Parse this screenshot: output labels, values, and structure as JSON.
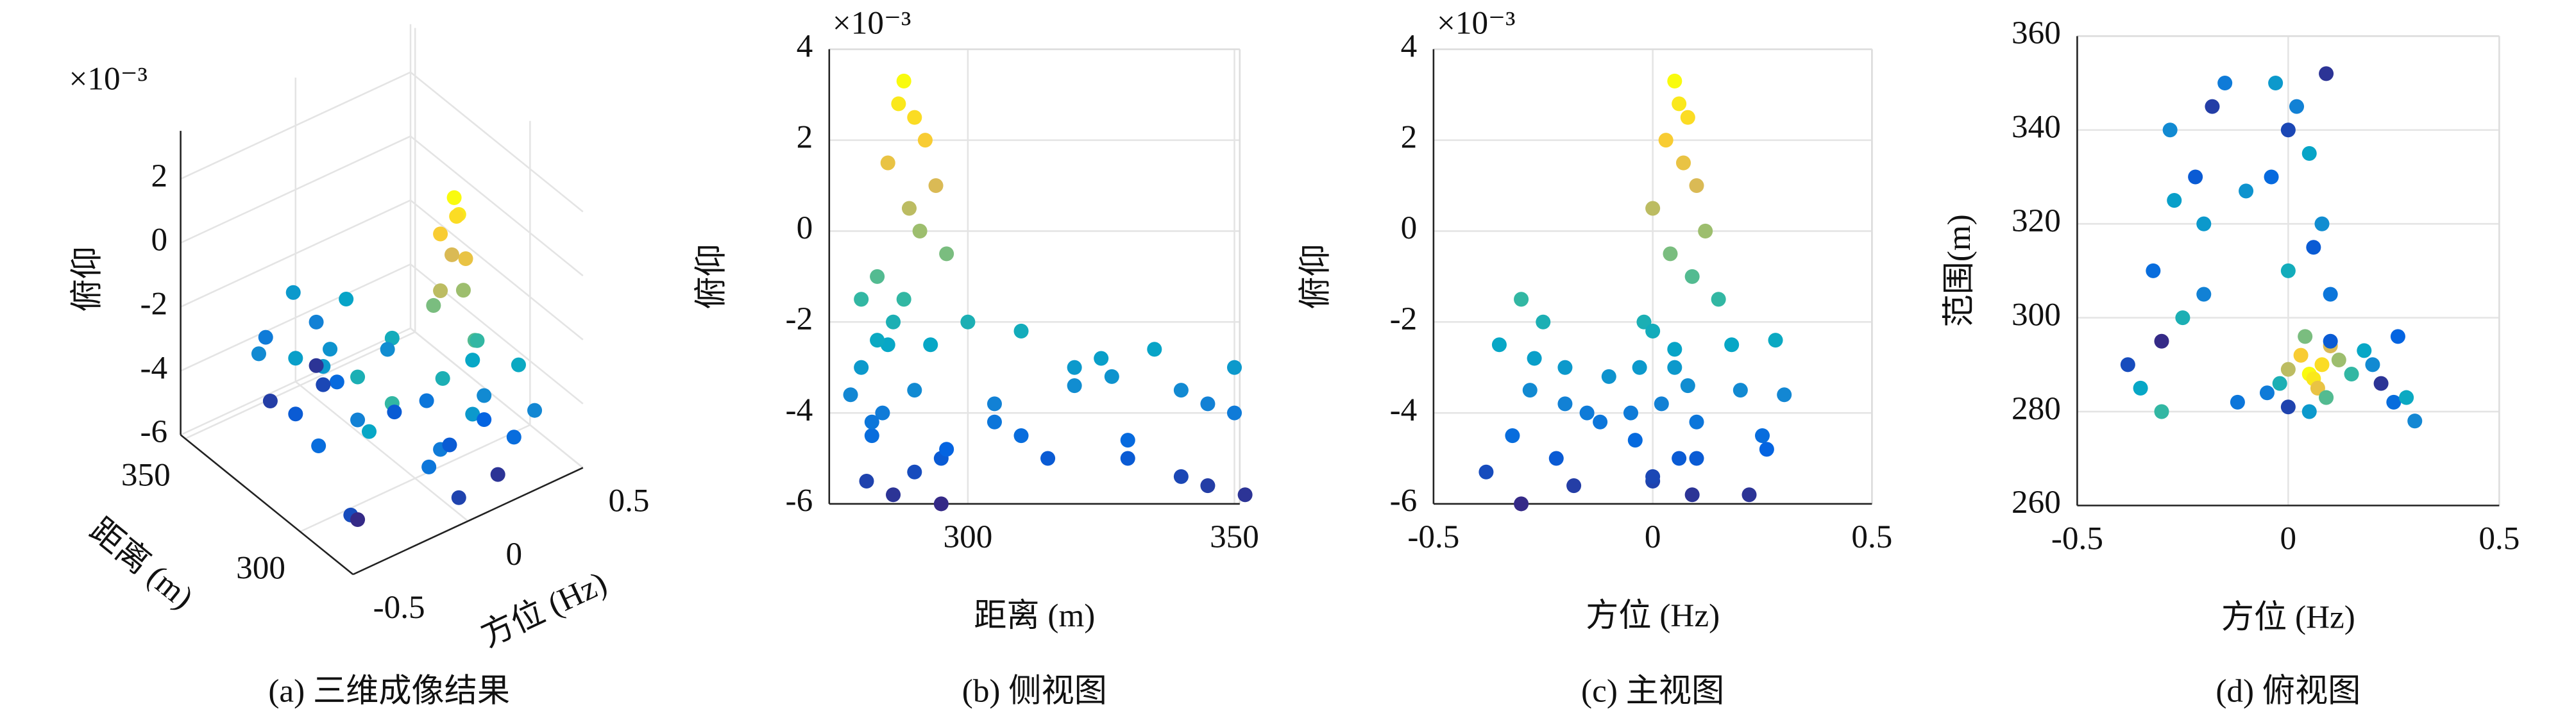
{
  "chart_data": [
    {
      "type": "scatter3d",
      "caption": "(a) 三维成像结果",
      "multiplier": "×10⁻³",
      "xlabel": "方位 (Hz)",
      "ylabel": "距离 (m)",
      "zlabel": "俯仰",
      "xlim": [
        -0.5,
        0.5
      ],
      "ylim": [
        277,
        352
      ],
      "zlim": [
        -6,
        3.5
      ],
      "xticks": [
        -0.5,
        0,
        0.5
      ],
      "yticks": [
        300,
        350
      ],
      "zticks": [
        -6,
        -4,
        -2,
        0,
        2
      ],
      "grid": true,
      "colormap": [
        "#352a87",
        "#0363e1",
        "#1485d4",
        "#06a7c6",
        "#38b99e",
        "#92bf73",
        "#d9ba56",
        "#fcce2e",
        "#f9fb0e"
      ],
      "x": [
        0.05,
        0.06,
        0.08,
        0.03,
        0.07,
        0.1,
        0,
        0.12,
        0.04,
        0.09,
        0.15,
        -0.02,
        0.18,
        0.05,
        0.2,
        -0.05,
        0.25,
        0.1,
        0,
        0.22,
        -0.3,
        -0.25,
        -0.35,
        -0.2,
        -0.28,
        -0.15,
        -0.32,
        -0.22,
        -0.38,
        -0.18,
        -0.3,
        -0.12,
        -0.27,
        -0.2,
        0,
        0.05,
        -0.03,
        0.08,
        0.02,
        0.1,
        -0.04,
        0.06,
        0,
        0.09,
        0.28,
        0.3,
        0.26,
        -0.1
      ],
      "y": [
        288,
        287,
        290,
        292,
        285,
        294,
        289,
        291,
        296,
        283,
        288,
        286,
        293,
        280,
        290,
        284,
        282,
        295,
        281,
        286,
        280,
        300,
        285,
        320,
        340,
        350,
        310,
        330,
        290,
        345,
        295,
        282,
        325,
        305,
        310,
        335,
        350,
        320,
        345,
        305,
        330,
        315,
        340,
        352,
        283,
        278,
        296,
        327
      ],
      "z": [
        3.3,
        2.8,
        2.5,
        2.0,
        1.5,
        1.0,
        0.5,
        0,
        -0.5,
        -1.0,
        -1.5,
        -2.0,
        -2.5,
        -3.0,
        -3.5,
        -4.0,
        -4.5,
        -5.0,
        -5.5,
        -5.8,
        -1.5,
        -2.0,
        -2.5,
        -3.0,
        -3.5,
        -4.0,
        -4.5,
        -5.0,
        -5.3,
        -5.6,
        -6.0,
        -4.2,
        -2.8,
        -3.8,
        -2.2,
        -2.6,
        -3.0,
        -3.4,
        -3.8,
        -4.2,
        -4.6,
        -5.0,
        -5.4,
        -5.8,
        -2.4,
        -3.6,
        -4.8,
        -3.2
      ]
    },
    {
      "type": "scatter",
      "caption": "(b) 侧视图",
      "multiplier": "×10⁻³",
      "xlabel": "距离 (m)",
      "ylabel": "俯仰",
      "xlim": [
        274,
        351
      ],
      "ylim": [
        -6,
        4
      ],
      "xticks": [
        300,
        350
      ],
      "yticks": [
        -6,
        -4,
        -2,
        0,
        2,
        4
      ],
      "grid": true,
      "colormap": [
        "#352a87",
        "#0363e1",
        "#1485d4",
        "#06a7c6",
        "#38b99e",
        "#92bf73",
        "#d9ba56",
        "#fcce2e",
        "#f9fb0e"
      ],
      "x": [
        288,
        287,
        290,
        292,
        285,
        294,
        289,
        291,
        296,
        283,
        288,
        286,
        293,
        280,
        290,
        284,
        282,
        295,
        281,
        286,
        280,
        300,
        285,
        320,
        340,
        350,
        310,
        330,
        290,
        345,
        295,
        282,
        325,
        305,
        310,
        335,
        350,
        320,
        345,
        305,
        330,
        315,
        340,
        352,
        283,
        278,
        296,
        327
      ],
      "y": [
        3.3,
        2.8,
        2.5,
        2.0,
        1.5,
        1.0,
        0.5,
        0,
        -0.5,
        -1.0,
        -1.5,
        -2.0,
        -2.5,
        -3.0,
        -3.5,
        -4.0,
        -4.5,
        -5.0,
        -5.5,
        -5.8,
        -1.5,
        -2.0,
        -2.5,
        -3.0,
        -3.5,
        -4.0,
        -4.5,
        -5.0,
        -5.3,
        -5.6,
        -6.0,
        -4.2,
        -2.8,
        -3.8,
        -2.2,
        -2.6,
        -3.0,
        -3.4,
        -3.8,
        -4.2,
        -4.6,
        -5.0,
        -5.4,
        -5.8,
        -2.4,
        -3.6,
        -4.8,
        -3.2
      ]
    },
    {
      "type": "scatter",
      "caption": "(c) 主视图",
      "multiplier": "×10⁻³",
      "xlabel": "方位 (Hz)",
      "ylabel": "俯仰",
      "xlim": [
        -0.5,
        0.5
      ],
      "ylim": [
        -6,
        4
      ],
      "xticks": [
        -0.5,
        0,
        0.5
      ],
      "yticks": [
        -6,
        -4,
        -2,
        0,
        2,
        4
      ],
      "grid": true,
      "colormap": [
        "#352a87",
        "#0363e1",
        "#1485d4",
        "#06a7c6",
        "#38b99e",
        "#92bf73",
        "#d9ba56",
        "#fcce2e",
        "#f9fb0e"
      ],
      "x": [
        0.05,
        0.06,
        0.08,
        0.03,
        0.07,
        0.1,
        0,
        0.12,
        0.04,
        0.09,
        0.15,
        -0.02,
        0.18,
        0.05,
        0.2,
        -0.05,
        0.25,
        0.1,
        0,
        0.22,
        -0.3,
        -0.25,
        -0.35,
        -0.2,
        -0.28,
        -0.15,
        -0.32,
        -0.22,
        -0.38,
        -0.18,
        -0.3,
        -0.12,
        -0.27,
        -0.2,
        0,
        0.05,
        -0.03,
        0.08,
        0.02,
        0.1,
        -0.04,
        0.06,
        0,
        0.09,
        0.28,
        0.3,
        0.26,
        -0.1
      ],
      "y": [
        3.3,
        2.8,
        2.5,
        2.0,
        1.5,
        1.0,
        0.5,
        0,
        -0.5,
        -1.0,
        -1.5,
        -2.0,
        -2.5,
        -3.0,
        -3.5,
        -4.0,
        -4.5,
        -5.0,
        -5.5,
        -5.8,
        -1.5,
        -2.0,
        -2.5,
        -3.0,
        -3.5,
        -4.0,
        -4.5,
        -5.0,
        -5.3,
        -5.6,
        -6.0,
        -4.2,
        -2.8,
        -3.8,
        -2.2,
        -2.6,
        -3.0,
        -3.4,
        -3.8,
        -4.2,
        -4.6,
        -5.0,
        -5.4,
        -5.8,
        -2.4,
        -3.6,
        -4.8,
        -3.2
      ]
    },
    {
      "type": "scatter",
      "caption": "(d) 俯视图",
      "xlabel": "方位 (Hz)",
      "ylabel": "范围(m)",
      "xlim": [
        -0.5,
        0.5
      ],
      "ylim": [
        260,
        360
      ],
      "xticks": [
        -0.5,
        0,
        0.5
      ],
      "yticks": [
        260,
        280,
        300,
        320,
        340,
        360
      ],
      "grid": true,
      "colormap": [
        "#352a87",
        "#0363e1",
        "#1485d4",
        "#06a7c6",
        "#38b99e",
        "#92bf73",
        "#d9ba56",
        "#fcce2e",
        "#f9fb0e"
      ],
      "x": [
        0.05,
        0.06,
        0.08,
        0.03,
        0.07,
        0.1,
        0,
        0.12,
        0.04,
        0.09,
        0.15,
        -0.02,
        0.18,
        0.05,
        0.2,
        -0.05,
        0.25,
        0.1,
        0,
        0.22,
        -0.3,
        -0.25,
        -0.35,
        -0.2,
        -0.28,
        -0.15,
        -0.32,
        -0.22,
        -0.38,
        -0.18,
        -0.3,
        -0.12,
        -0.27,
        -0.2,
        0,
        0.05,
        -0.03,
        0.08,
        0.02,
        0.1,
        -0.04,
        0.06,
        0,
        0.09,
        0.28,
        0.3,
        0.26,
        -0.1
      ],
      "y": [
        288,
        287,
        290,
        292,
        285,
        294,
        289,
        291,
        296,
        283,
        288,
        286,
        293,
        280,
        290,
        284,
        282,
        295,
        281,
        286,
        280,
        300,
        285,
        320,
        340,
        350,
        310,
        330,
        290,
        345,
        295,
        282,
        325,
        305,
        310,
        335,
        350,
        320,
        345,
        305,
        330,
        315,
        340,
        352,
        283,
        278,
        296,
        327
      ],
      "c": [
        3.3,
        2.8,
        2.5,
        2.0,
        1.5,
        1.0,
        0.5,
        0,
        -0.5,
        -1.0,
        -1.5,
        -2.0,
        -2.5,
        -3.0,
        -3.5,
        -4.0,
        -4.5,
        -5.0,
        -5.5,
        -5.8,
        -1.5,
        -2.0,
        -2.5,
        -3.0,
        -3.5,
        -4.0,
        -4.5,
        -5.0,
        -5.3,
        -5.6,
        -6.0,
        -4.2,
        -2.8,
        -3.8,
        -2.2,
        -2.6,
        -3.0,
        -3.4,
        -3.8,
        -4.2,
        -4.6,
        -5.0,
        -5.4,
        -5.8,
        -2.4,
        -3.6,
        -4.8,
        -3.2
      ]
    }
  ]
}
